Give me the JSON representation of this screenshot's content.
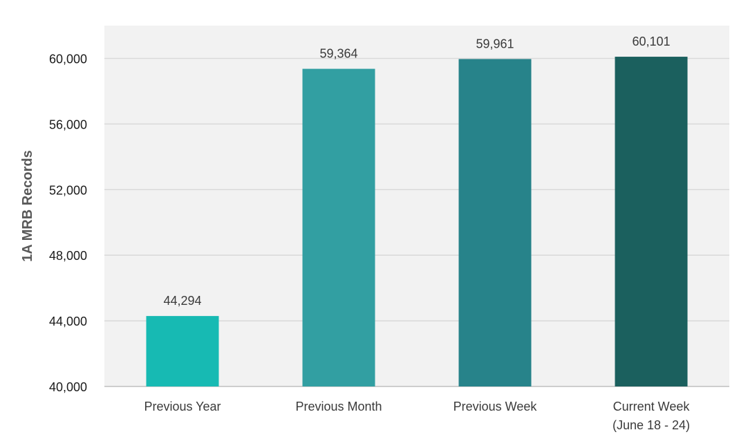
{
  "chart_data": {
    "type": "bar",
    "title": "",
    "xlabel": "",
    "ylabel": "1A MRB Records",
    "categories": [
      [
        "Previous Year"
      ],
      [
        "Previous Month"
      ],
      [
        "Previous Week"
      ],
      [
        "Current Week",
        "(June 18 - 24)"
      ]
    ],
    "values": [
      44294,
      59364,
      59961,
      60101
    ],
    "data_labels": [
      "44,294",
      "59,364",
      "59,961",
      "60,101"
    ],
    "ylim": [
      40000,
      62000
    ],
    "yticks": [
      40000,
      44000,
      48000,
      52000,
      56000,
      60000
    ],
    "ytick_labels": [
      "40,000",
      "44,000",
      "48,000",
      "52,000",
      "56,000",
      "60,000"
    ],
    "grid": true,
    "legend": "none",
    "colors": [
      "#17BAB3",
      "#329FA2",
      "#27838A",
      "#1B605E"
    ],
    "plot_background": "#F2F2F2",
    "grid_color": "#D9D9D9"
  }
}
